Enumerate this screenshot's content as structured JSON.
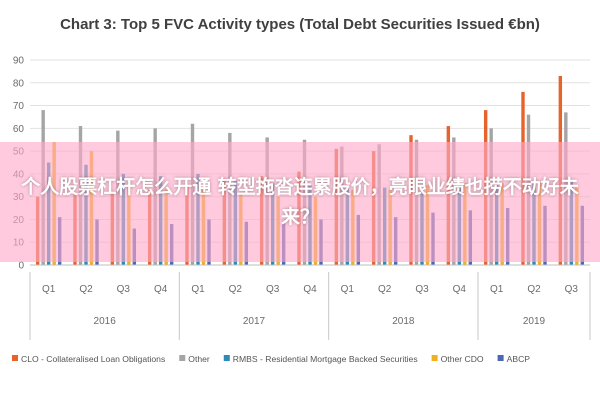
{
  "colors": {
    "CLO": "#e8622c",
    "Other": "#a5a5a5",
    "RMBS": "#2e8bb8",
    "Other CDO": "#f2b01e",
    "ABCP": "#4c67b3",
    "grid": "#e2e2e2",
    "axis_text": "#6b6b6b",
    "overlay": "#ffaac8"
  },
  "overlay": {
    "text": "个人股票杠杆怎么开通 转型拖沓连累股价，亮眼业绩也捞不动好未来？"
  },
  "chart_data": {
    "type": "bar",
    "title": "Chart 3: Top 5 FVC Activity types (Total Debt Securities Issued €bn)",
    "xlabel": "",
    "ylabel": "",
    "ylim": [
      0,
      90
    ],
    "yticks": [
      0,
      10,
      20,
      30,
      40,
      50,
      60,
      70,
      80,
      90
    ],
    "grid": true,
    "legend_position": "bottom",
    "categories": [
      "Q1",
      "Q2",
      "Q3",
      "Q4",
      "Q1",
      "Q2",
      "Q3",
      "Q4",
      "Q1",
      "Q2",
      "Q3",
      "Q4",
      "Q1",
      "Q2",
      "Q3"
    ],
    "groups": [
      {
        "label": "2016",
        "count": 4
      },
      {
        "label": "2017",
        "count": 4
      },
      {
        "label": "2018",
        "count": 4
      },
      {
        "label": "2019",
        "count": 3
      }
    ],
    "series": [
      {
        "name": "CLO - Collateralised Loan Obligations",
        "color_key": "CLO",
        "values": [
          30,
          31,
          32,
          33,
          35,
          38,
          39,
          41,
          51,
          50,
          57,
          61,
          68,
          76,
          83
        ]
      },
      {
        "name": "Other",
        "color_key": "Other",
        "values": [
          68,
          61,
          59,
          60,
          62,
          58,
          56,
          55,
          52,
          53,
          55,
          56,
          60,
          66,
          67
        ]
      },
      {
        "name": "RMBS - Residential Mortgage Backed Securities",
        "color_key": "RMBS",
        "values": [
          45,
          44,
          40,
          39,
          40,
          37,
          36,
          35,
          34,
          34,
          33,
          34,
          35,
          36,
          37
        ]
      },
      {
        "name": "Other CDO",
        "color_key": "Other CDO",
        "values": [
          54,
          50,
          35,
          33,
          33,
          31,
          30,
          30,
          33,
          33,
          35,
          36,
          36,
          36,
          34
        ]
      },
      {
        "name": "ABCP",
        "color_key": "ABCP",
        "values": [
          21,
          20,
          16,
          18,
          20,
          19,
          19,
          20,
          22,
          21,
          23,
          24,
          25,
          26,
          26
        ]
      }
    ]
  }
}
